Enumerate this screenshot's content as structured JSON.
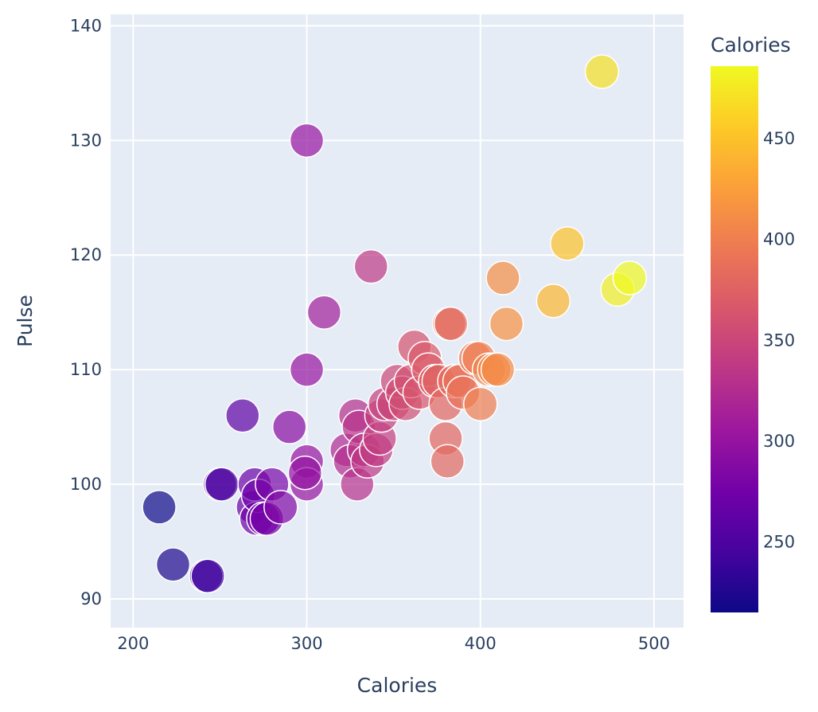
{
  "chart_data": {
    "type": "scatter",
    "xlabel": "Calories",
    "ylabel": "Pulse",
    "xlim": [
      187,
      517
    ],
    "ylim": [
      87.5,
      141
    ],
    "xticks": [
      200,
      300,
      400,
      500
    ],
    "yticks": [
      90,
      100,
      110,
      120,
      130,
      140
    ],
    "plot_background": "#e5ecf6",
    "marker_opacity": 0.7,
    "colorscale": "plasma",
    "colorbar": {
      "title": "Calories",
      "range": [
        215,
        486
      ],
      "ticks": [
        250,
        300,
        350,
        400,
        450
      ]
    },
    "points": [
      {
        "x": 215,
        "y": 98
      },
      {
        "x": 223,
        "y": 93
      },
      {
        "x": 242,
        "y": 92
      },
      {
        "x": 243,
        "y": 92
      },
      {
        "x": 250,
        "y": 100
      },
      {
        "x": 251,
        "y": 100
      },
      {
        "x": 263,
        "y": 106
      },
      {
        "x": 269,
        "y": 98
      },
      {
        "x": 270,
        "y": 100
      },
      {
        "x": 271,
        "y": 97
      },
      {
        "x": 272,
        "y": 99
      },
      {
        "x": 275,
        "y": 97
      },
      {
        "x": 277,
        "y": 97
      },
      {
        "x": 280,
        "y": 100
      },
      {
        "x": 285,
        "y": 98
      },
      {
        "x": 290,
        "y": 105
      },
      {
        "x": 300,
        "y": 130
      },
      {
        "x": 300,
        "y": 110
      },
      {
        "x": 300,
        "y": 102
      },
      {
        "x": 300,
        "y": 100
      },
      {
        "x": 299,
        "y": 101
      },
      {
        "x": 310,
        "y": 115
      },
      {
        "x": 323,
        "y": 103
      },
      {
        "x": 325,
        "y": 102
      },
      {
        "x": 328,
        "y": 106
      },
      {
        "x": 329,
        "y": 100
      },
      {
        "x": 330,
        "y": 105
      },
      {
        "x": 333,
        "y": 103
      },
      {
        "x": 335,
        "y": 102
      },
      {
        "x": 337,
        "y": 119
      },
      {
        "x": 340,
        "y": 103
      },
      {
        "x": 342,
        "y": 104
      },
      {
        "x": 343,
        "y": 106
      },
      {
        "x": 345,
        "y": 107
      },
      {
        "x": 350,
        "y": 107
      },
      {
        "x": 352,
        "y": 109
      },
      {
        "x": 355,
        "y": 108
      },
      {
        "x": 357,
        "y": 107
      },
      {
        "x": 360,
        "y": 109
      },
      {
        "x": 362,
        "y": 112
      },
      {
        "x": 365,
        "y": 108
      },
      {
        "x": 368,
        "y": 111
      },
      {
        "x": 370,
        "y": 110
      },
      {
        "x": 374,
        "y": 109
      },
      {
        "x": 376,
        "y": 109
      },
      {
        "x": 380,
        "y": 107
      },
      {
        "x": 380,
        "y": 104
      },
      {
        "x": 381,
        "y": 102
      },
      {
        "x": 382,
        "y": 114
      },
      {
        "x": 383,
        "y": 114
      },
      {
        "x": 385,
        "y": 109
      },
      {
        "x": 388,
        "y": 109
      },
      {
        "x": 390,
        "y": 108
      },
      {
        "x": 397,
        "y": 111
      },
      {
        "x": 399,
        "y": 111
      },
      {
        "x": 400,
        "y": 107
      },
      {
        "x": 405,
        "y": 110
      },
      {
        "x": 408,
        "y": 110
      },
      {
        "x": 410,
        "y": 110
      },
      {
        "x": 413,
        "y": 118
      },
      {
        "x": 415,
        "y": 114
      },
      {
        "x": 442,
        "y": 116
      },
      {
        "x": 450,
        "y": 121
      },
      {
        "x": 470,
        "y": 136
      },
      {
        "x": 479,
        "y": 117
      },
      {
        "x": 486,
        "y": 118
      }
    ]
  }
}
